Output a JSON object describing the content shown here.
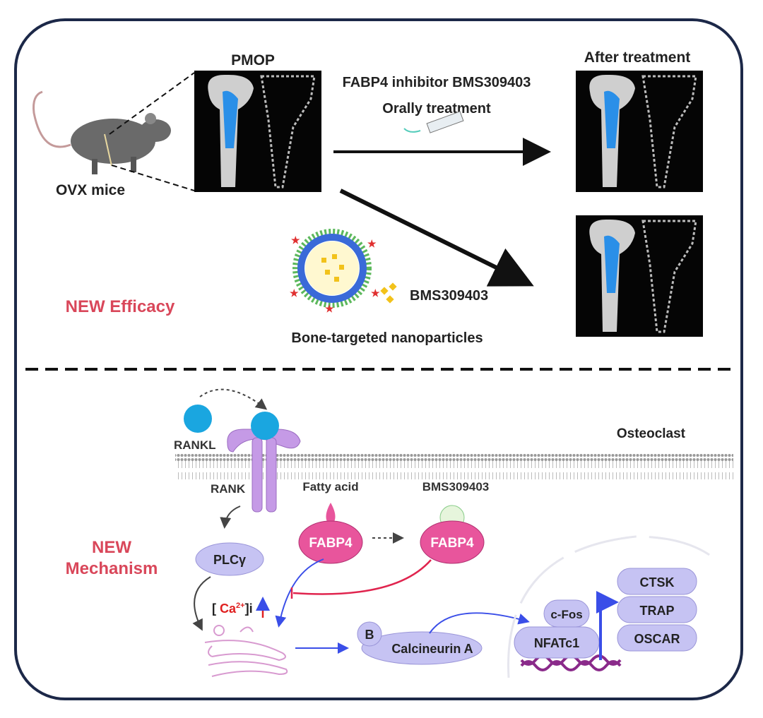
{
  "top": {
    "pmop_label": "PMOP",
    "mouse_label": "OVX mice",
    "treatment_line1": "FABP4 inhibitor BMS309403",
    "treatment_line2": "Orally treatment",
    "after_label": "After treatment",
    "drug_label": "BMS309403",
    "nanoparticle_label": "Bone-targeted nanoparticles",
    "efficacy_label": "NEW Efficacy"
  },
  "bottom": {
    "mechanism_line1": "NEW",
    "mechanism_line2": "Mechanism",
    "cell_label": "Osteoclast",
    "rankl": "RANKL",
    "rank": "RANK",
    "fatty_acid": "Fatty acid",
    "bms": "BMS309403",
    "fabp4_a": "FABP4",
    "fabp4_b": "FABP4",
    "plcg": "PLCγ",
    "ca_open": "[",
    "ca": "Ca",
    "ca_sup": "2+",
    "ca_close": "]i",
    "calcineurin_b": "B",
    "calcineurin_a": "Calcineurin A",
    "cfos": "c-Fos",
    "nfatc1": "NFATc1",
    "genes": [
      "CTSK",
      "TRAP",
      "OSCAR"
    ]
  },
  "colors": {
    "frame": "#1c2848",
    "accent_red": "#d9475a",
    "fabp4": "#e8559c",
    "protein": "#c6c3f3",
    "receptor": "#b98ee0",
    "ligand": "#1aa6e0",
    "activation_arrow": "#3a4ee8",
    "inhibition": "#e0244e"
  }
}
